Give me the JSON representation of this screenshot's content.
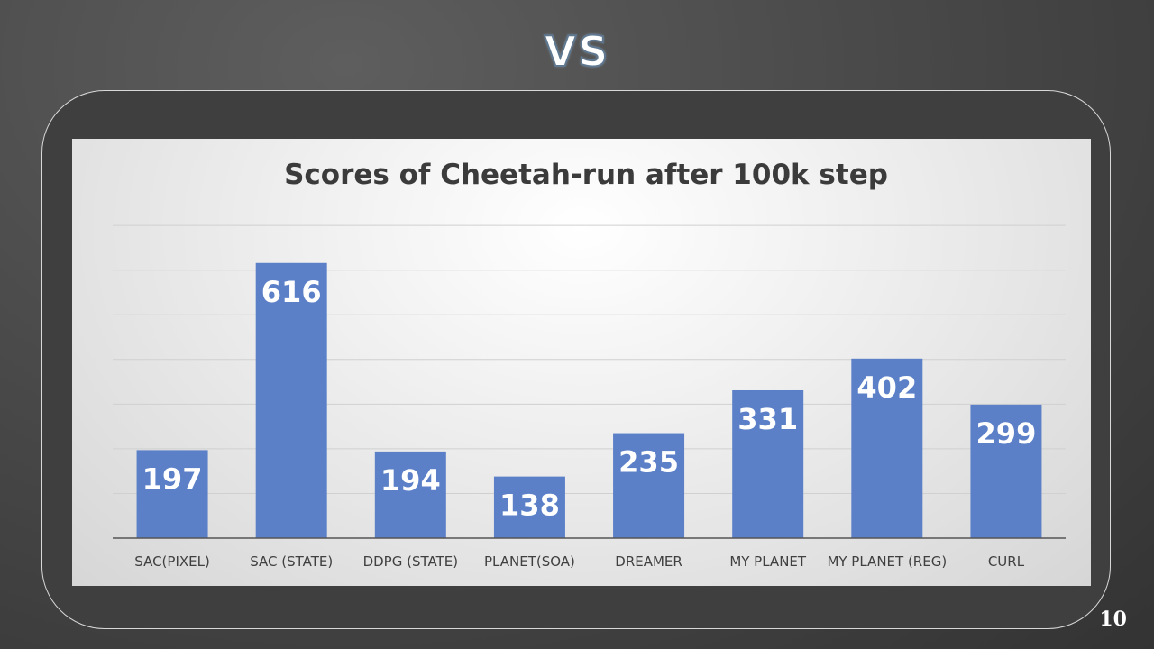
{
  "slide": {
    "title": "VS",
    "page_number": "10"
  },
  "colors": {
    "bar": "#5b80c8",
    "gridline": "#d0d0d0",
    "axis": "#555555",
    "title_text": "#3b3b3b",
    "label_text": "#404040",
    "value_text": "#ffffff"
  },
  "chart_data": {
    "type": "bar",
    "title": "Scores of Cheetah-run after 100k step",
    "xlabel": "",
    "ylabel": "",
    "categories": [
      "SAC(PIXEL)",
      "SAC (STATE)",
      "DDPG (STATE)",
      "PLANET(SOA)",
      "DREAMER",
      "MY PLANET",
      "MY PLANET (REG)",
      "CURL"
    ],
    "values": [
      197,
      616,
      194,
      138,
      235,
      331,
      402,
      299
    ],
    "ylim": [
      0,
      700
    ],
    "grid": true,
    "data_labels": true,
    "legend": "none"
  }
}
